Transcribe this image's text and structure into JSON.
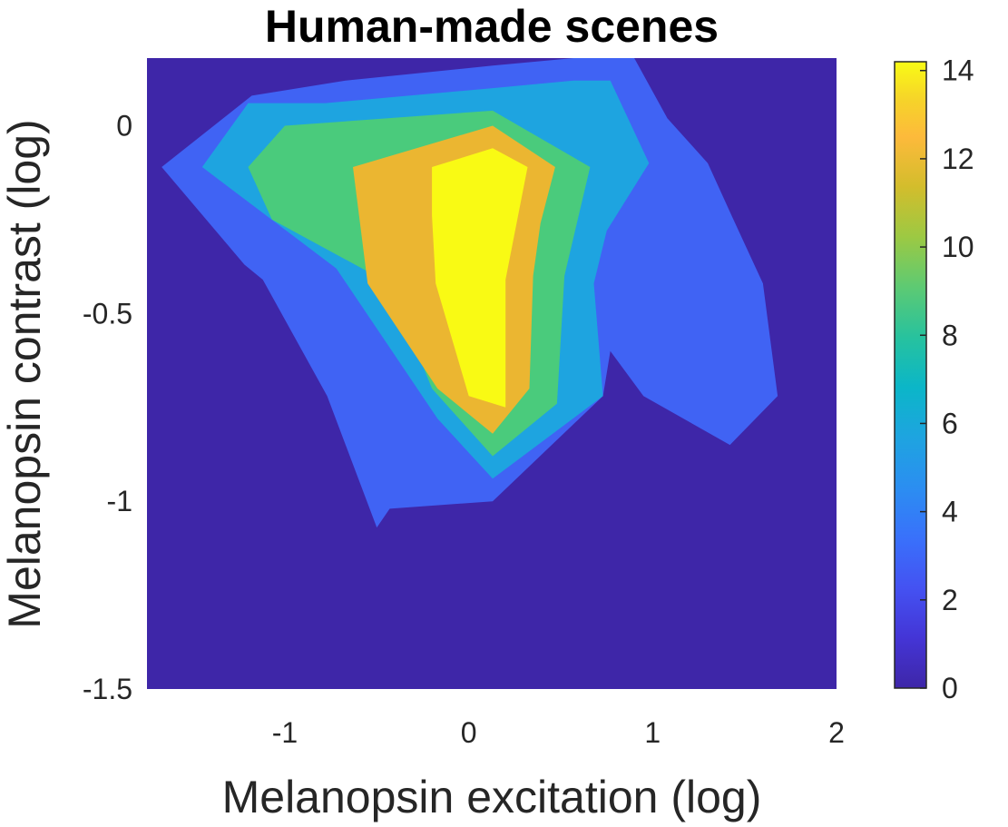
{
  "chart_data": {
    "type": "contourf",
    "title": "Human-made scenes",
    "xlabel": "Melanopsin excitation (log)",
    "ylabel": "Melanopsin contrast (log)",
    "xlim": [
      -1.75,
      2
    ],
    "ylim": [
      -1.5,
      0.18
    ],
    "x_ticks": [
      -1,
      0,
      1,
      2
    ],
    "x_tick_labels": [
      "-1",
      "0",
      "1",
      "2"
    ],
    "y_ticks": [
      0,
      -0.5,
      -1,
      -1.5
    ],
    "y_tick_labels": [
      "0",
      "-0.5",
      "-1",
      "-1.5"
    ],
    "colorbar": {
      "ticks": [
        0,
        2,
        4,
        6,
        8,
        10,
        12,
        14
      ],
      "tick_labels": [
        "0",
        "2",
        "4",
        "6",
        "8",
        "10",
        "12",
        "14"
      ],
      "range": [
        0,
        14.2
      ],
      "colormap": "parula"
    },
    "background_color": "#3e26a8",
    "levels": [
      {
        "level": 2,
        "color": "#4063f4",
        "points": [
          [
            -1.67,
            -0.11
          ],
          [
            -1.18,
            0.08
          ],
          [
            -0.67,
            0.12
          ],
          [
            0.13,
            0.16
          ],
          [
            0.57,
            0.18
          ],
          [
            0.9,
            0.18
          ],
          [
            1.08,
            0.02
          ],
          [
            1.3,
            -0.1
          ],
          [
            1.43,
            -0.24
          ],
          [
            1.6,
            -0.42
          ],
          [
            1.68,
            -0.72
          ],
          [
            1.42,
            -0.85
          ],
          [
            0.95,
            -0.72
          ],
          [
            0.77,
            -0.6
          ],
          [
            0.73,
            -0.72
          ],
          [
            0.13,
            -1.0
          ],
          [
            -0.43,
            -1.02
          ],
          [
            -0.5,
            -1.07
          ],
          [
            -0.77,
            -0.72
          ],
          [
            -1.12,
            -0.41
          ],
          [
            -1.22,
            -0.37
          ]
        ]
      },
      {
        "level": 4,
        "color": "#1ea4e0",
        "points": [
          [
            -1.45,
            -0.11
          ],
          [
            -1.2,
            0.06
          ],
          [
            -0.78,
            0.06
          ],
          [
            0.13,
            0.1
          ],
          [
            0.57,
            0.12
          ],
          [
            0.77,
            0.12
          ],
          [
            0.98,
            -0.1
          ],
          [
            0.75,
            -0.28
          ],
          [
            0.68,
            -0.42
          ],
          [
            0.73,
            -0.72
          ],
          [
            0.13,
            -0.94
          ],
          [
            -0.17,
            -0.78
          ],
          [
            -0.72,
            -0.38
          ]
        ]
      },
      {
        "level": 8,
        "color": "#4acb7c",
        "points": [
          [
            -1.2,
            -0.11
          ],
          [
            -1.0,
            0.0
          ],
          [
            0.13,
            0.04
          ],
          [
            0.66,
            -0.11
          ],
          [
            0.52,
            -0.4
          ],
          [
            0.48,
            -0.74
          ],
          [
            0.13,
            -0.88
          ],
          [
            -0.2,
            -0.7
          ],
          [
            -0.43,
            -0.42
          ],
          [
            -1.07,
            -0.25
          ]
        ]
      },
      {
        "level": 10,
        "color": "#ebb631",
        "points": [
          [
            -0.63,
            -0.11
          ],
          [
            0.13,
            0.0
          ],
          [
            0.47,
            -0.11
          ],
          [
            0.39,
            -0.26
          ],
          [
            0.35,
            -0.4
          ],
          [
            0.33,
            -0.7
          ],
          [
            0.13,
            -0.82
          ],
          [
            -0.17,
            -0.7
          ],
          [
            -0.55,
            -0.42
          ]
        ]
      },
      {
        "level": 12,
        "color": "#f9fa14",
        "points": [
          [
            -0.2,
            -0.11
          ],
          [
            0.13,
            -0.06
          ],
          [
            0.32,
            -0.11
          ],
          [
            0.2,
            -0.41
          ],
          [
            0.2,
            -0.75
          ],
          [
            0.0,
            -0.72
          ],
          [
            -0.18,
            -0.42
          ],
          [
            -0.2,
            -0.24
          ]
        ]
      }
    ]
  }
}
